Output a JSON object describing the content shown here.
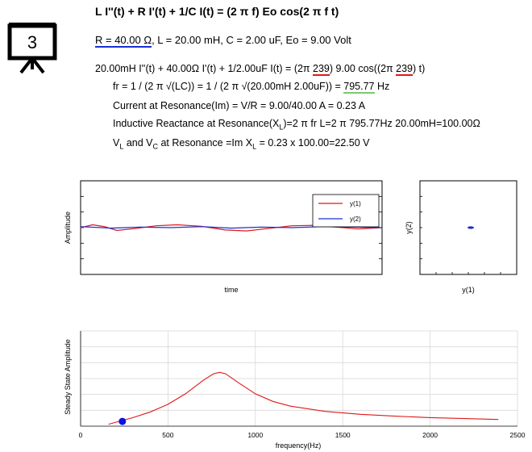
{
  "header": {
    "slide_number": "3",
    "equation": "L I''(t) + R I'(t) + 1/C I(t) = (2 π f) Eo cos(2 π f t)",
    "params": {
      "r_part": "R = 40.00 Ω",
      "rest": ", L = 20.00 mH, C = 2.00 uF, Eo = 9.00 Volt"
    },
    "steady": {
      "pre": "20.00mH I''(t) + 40.00Ω I'(t) + 1/2.00uF I(t) = (2π ",
      "f1": "239",
      "mid": ") 9.00 cos((2π ",
      "f2": "239",
      "post": ") t)"
    },
    "fr": {
      "pre": "fr = 1 / (2 π √(LC)) = 1 / (2 π √(20.00mH 2.00uF)) = ",
      "value": "795.77",
      "unit": " Hz"
    },
    "im": "Current at Resonance(Im) = V/R = 9.00/40.00 A = 0.23 A",
    "xl": {
      "pre": "Inductive Reactance at Resonance(X",
      "sub": "L",
      "post": ")=2 π fr L=2 π 795.77Hz 20.00mH=100.00Ω"
    },
    "vlc": {
      "a": "V",
      "a_sub": "L",
      "b": " and V",
      "b_sub": "C",
      "c": " at Resonance =Im X",
      "c_sub": "L",
      "d": " = 0.23 x 100.00=22.50 V"
    }
  },
  "colors": {
    "y1": "#e01818",
    "y2": "#1a2fd0",
    "grid": "#d8d8d8",
    "marker": "#1010e0"
  },
  "chart_data": [
    {
      "type": "line",
      "xlabel": "time",
      "ylabel": "Amplitude",
      "ylim": [
        -1,
        1
      ],
      "grid": true,
      "legend_position": "top-right",
      "series": [
        {
          "name": "y(1)",
          "x": [
            0,
            0.04,
            0.08,
            0.12,
            0.18,
            0.25,
            0.32,
            0.4,
            0.48,
            0.55,
            0.62,
            0.7,
            0.78,
            0.85,
            0.92,
            1.0
          ],
          "values": [
            0,
            0.06,
            0.02,
            -0.06,
            -0.02,
            0.04,
            0.06,
            0.03,
            -0.05,
            -0.07,
            -0.02,
            0.04,
            0.05,
            0.01,
            -0.03,
            0
          ]
        },
        {
          "name": "y(2)",
          "x": [
            0,
            0.1,
            0.2,
            0.3,
            0.4,
            0.5,
            0.6,
            0.7,
            0.8,
            0.9,
            1.0
          ],
          "values": [
            0.02,
            -0.01,
            0.01,
            0.0,
            0.02,
            -0.01,
            0.01,
            0.0,
            0.02,
            0.01,
            0.0
          ]
        }
      ]
    },
    {
      "type": "scatter",
      "xlabel": "y(1)",
      "ylabel": "y(2)",
      "grid": false,
      "points": [
        {
          "x": 0.05,
          "y": 0.0
        }
      ]
    },
    {
      "type": "line",
      "xlabel": "frequency(Hz)",
      "ylabel": "Steady State Amplitude",
      "xlim": [
        0,
        2500
      ],
      "ylim": [
        0,
        1
      ],
      "xticks": [
        0,
        500,
        1000,
        1500,
        2000,
        2500
      ],
      "grid": true,
      "series": [
        {
          "name": "",
          "x": [
            160,
            240,
            300,
            400,
            500,
            600,
            700,
            760,
            796,
            830,
            900,
            1000,
            1100,
            1200,
            1400,
            1600,
            1800,
            2000,
            2200,
            2390
          ],
          "values": [
            0.02,
            0.06,
            0.09,
            0.15,
            0.23,
            0.34,
            0.48,
            0.55,
            0.565,
            0.55,
            0.46,
            0.34,
            0.26,
            0.21,
            0.155,
            0.125,
            0.105,
            0.09,
            0.08,
            0.07
          ]
        }
      ],
      "marker": {
        "x": 239,
        "y": 0.05
      }
    }
  ]
}
